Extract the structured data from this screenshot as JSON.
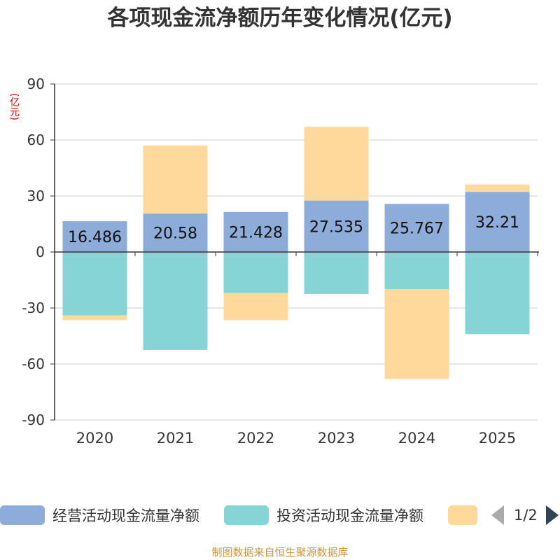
{
  "title": "各项现金流净额历年变化情况(亿元)",
  "unit_label": "(亿元)",
  "colors": {
    "operating": "#8eacd9",
    "investing": "#86d4d6",
    "financing": "#ffd89c",
    "grid": "#cccccc",
    "axis": "#333333",
    "text": "#333333",
    "unit": "#cc0000",
    "source": "#c8963c"
  },
  "chart_data": {
    "type": "bar",
    "stacked": true,
    "title": "各项现金流净额历年变化情况(亿元)",
    "ylabel": "(亿元)",
    "xlabel": "",
    "ylim": [
      -90,
      90
    ],
    "yticks": [
      90,
      60,
      30,
      0,
      -30,
      -60,
      -90
    ],
    "categories": [
      "2020",
      "2021",
      "2022",
      "2023",
      "2024",
      "2025"
    ],
    "series": [
      {
        "name": "经营活动现金流量净额",
        "values": [
          16.486,
          20.58,
          21.428,
          27.535,
          25.767,
          32.21
        ],
        "labels": [
          "16.486",
          "20.58",
          "21.428",
          "27.535",
          "25.767",
          "32.21"
        ]
      },
      {
        "name": "投资活动现金流量净额",
        "values": [
          -34,
          -52.5,
          -22,
          -22.5,
          -20,
          -44
        ]
      },
      {
        "name": "",
        "values": [
          -2.5,
          36.5,
          -14.5,
          39.5,
          -48,
          4
        ]
      }
    ],
    "legend_position": "bottom"
  },
  "legend": {
    "items": [
      "经营活动现金流量净额",
      "投资活动现金流量净额",
      ""
    ],
    "page": "1/2"
  },
  "source": "制图数据来自恒生聚源数据库"
}
